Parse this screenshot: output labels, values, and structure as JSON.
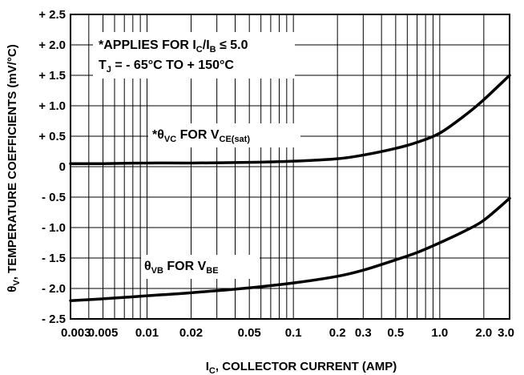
{
  "chart_data": {
    "type": "line",
    "x_scale": "log",
    "xlim": [
      0.003,
      3.0
    ],
    "ylim": [
      -2.5,
      2.5
    ],
    "grid": true,
    "xlabel": {
      "main": "I",
      "sub": "C",
      "rest": ", COLLECTOR CURRENT (AMP)"
    },
    "ylabel": {
      "main": "θ",
      "sub": "V",
      "rest": ", TEMPERATURE COEFFICIENTS (mV/°C)"
    },
    "x_ticks": [
      {
        "value": 0.003,
        "label": "0.003"
      },
      {
        "value": 0.005,
        "label": "0.005"
      },
      {
        "value": 0.01,
        "label": "0.01"
      },
      {
        "value": 0.02,
        "label": "0.02"
      },
      {
        "value": 0.05,
        "label": "0.05"
      },
      {
        "value": 0.1,
        "label": "0.1"
      },
      {
        "value": 0.2,
        "label": "0.2"
      },
      {
        "value": 0.3,
        "label": "0.3"
      },
      {
        "value": 0.5,
        "label": "0.5"
      },
      {
        "value": 1.0,
        "label": "1.0"
      },
      {
        "value": 2.0,
        "label": "2.0"
      },
      {
        "value": 3.0,
        "label": "3.0"
      }
    ],
    "y_ticks": [
      {
        "value": 2.5,
        "label": "+ 2.5"
      },
      {
        "value": 2.0,
        "label": "+ 2.0"
      },
      {
        "value": 1.5,
        "label": "+ 1.5"
      },
      {
        "value": 1.0,
        "label": "+ 1.0"
      },
      {
        "value": 0.5,
        "label": "+ 0.5"
      },
      {
        "value": 0,
        "label": "0"
      },
      {
        "value": -0.5,
        "label": "- 0.5"
      },
      {
        "value": -1.0,
        "label": "- 1.0"
      },
      {
        "value": -1.5,
        "label": "- 1.5"
      },
      {
        "value": -2.0,
        "label": "- 2.0"
      },
      {
        "value": -2.5,
        "label": "- 2.5"
      }
    ],
    "series": [
      {
        "x": [
          0.003,
          0.005,
          0.01,
          0.02,
          0.05,
          0.1,
          0.2,
          0.3,
          0.5,
          0.7,
          1.0,
          1.5,
          2.0,
          3.0
        ],
        "y": [
          0.05,
          0.05,
          0.06,
          0.06,
          0.07,
          0.09,
          0.13,
          0.19,
          0.3,
          0.4,
          0.55,
          0.85,
          1.1,
          1.5
        ]
      },
      {
        "x": [
          0.003,
          0.005,
          0.01,
          0.02,
          0.05,
          0.1,
          0.2,
          0.3,
          0.5,
          0.7,
          1.0,
          1.5,
          2.0,
          3.0
        ],
        "y": [
          -2.2,
          -2.17,
          -2.12,
          -2.07,
          -1.99,
          -1.91,
          -1.8,
          -1.7,
          -1.53,
          -1.41,
          -1.25,
          -1.05,
          -0.88,
          -0.52
        ]
      }
    ],
    "annotations": {
      "applies_line1": {
        "pre": "*APPLIES FOR I",
        "sub1": "C",
        "mid": "/I",
        "sub2": "B",
        "post": " ≤ 5.0"
      },
      "applies_line2": {
        "pre": "T",
        "sub1": "J",
        "post": " = - 65°C TO + 150°C"
      },
      "theta_vc": {
        "pre": "*θ",
        "sub1": "VC",
        "mid": " FOR V",
        "sub2": "CE(sat)"
      },
      "theta_vb": {
        "pre": "θ",
        "sub1": "VB",
        "mid": " FOR V",
        "sub2": "BE"
      }
    }
  }
}
